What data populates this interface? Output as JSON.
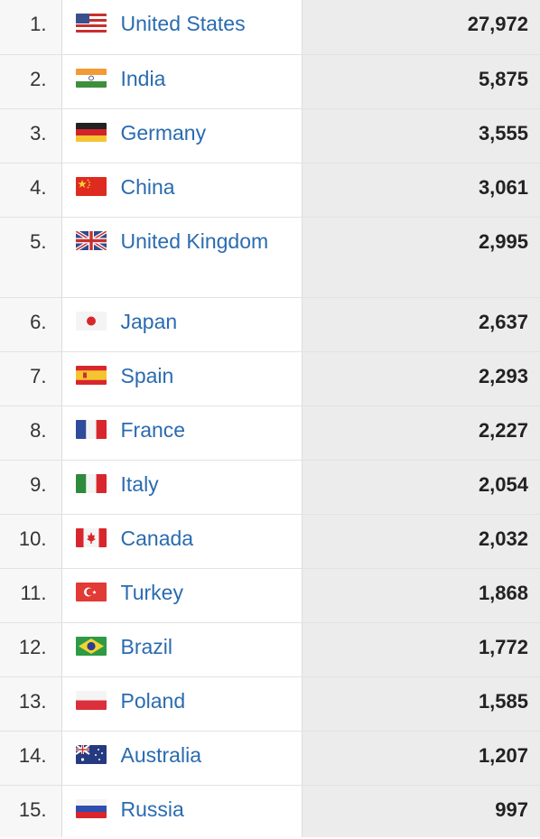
{
  "rows": [
    {
      "rank": "1.",
      "country": "United States",
      "value": "27,972",
      "flag_icon": "us-flag-icon"
    },
    {
      "rank": "2.",
      "country": "India",
      "value": "5,875",
      "flag_icon": "india-flag-icon"
    },
    {
      "rank": "3.",
      "country": "Germany",
      "value": "3,555",
      "flag_icon": "germany-flag-icon"
    },
    {
      "rank": "4.",
      "country": "China",
      "value": "3,061",
      "flag_icon": "china-flag-icon"
    },
    {
      "rank": "5.",
      "country": "United Kingdom",
      "value": "2,995",
      "flag_icon": "uk-flag-icon"
    },
    {
      "rank": "6.",
      "country": "Japan",
      "value": "2,637",
      "flag_icon": "japan-flag-icon"
    },
    {
      "rank": "7.",
      "country": "Spain",
      "value": "2,293",
      "flag_icon": "spain-flag-icon"
    },
    {
      "rank": "8.",
      "country": "France",
      "value": "2,227",
      "flag_icon": "france-flag-icon"
    },
    {
      "rank": "9.",
      "country": "Italy",
      "value": "2,054",
      "flag_icon": "italy-flag-icon"
    },
    {
      "rank": "10.",
      "country": "Canada",
      "value": "2,032",
      "flag_icon": "canada-flag-icon"
    },
    {
      "rank": "11.",
      "country": "Turkey",
      "value": "1,868",
      "flag_icon": "turkey-flag-icon"
    },
    {
      "rank": "12.",
      "country": "Brazil",
      "value": "1,772",
      "flag_icon": "brazil-flag-icon"
    },
    {
      "rank": "13.",
      "country": "Poland",
      "value": "1,585",
      "flag_icon": "poland-flag-icon"
    },
    {
      "rank": "14.",
      "country": "Australia",
      "value": "1,207",
      "flag_icon": "australia-flag-icon"
    },
    {
      "rank": "15.",
      "country": "Russia",
      "value": "997",
      "flag_icon": "russia-flag-icon"
    }
  ],
  "colors": {
    "link": "#2a6bb0",
    "rank_bg": "#f7f7f7",
    "value_bg": "#ececec",
    "border": "#e2e2e2"
  }
}
